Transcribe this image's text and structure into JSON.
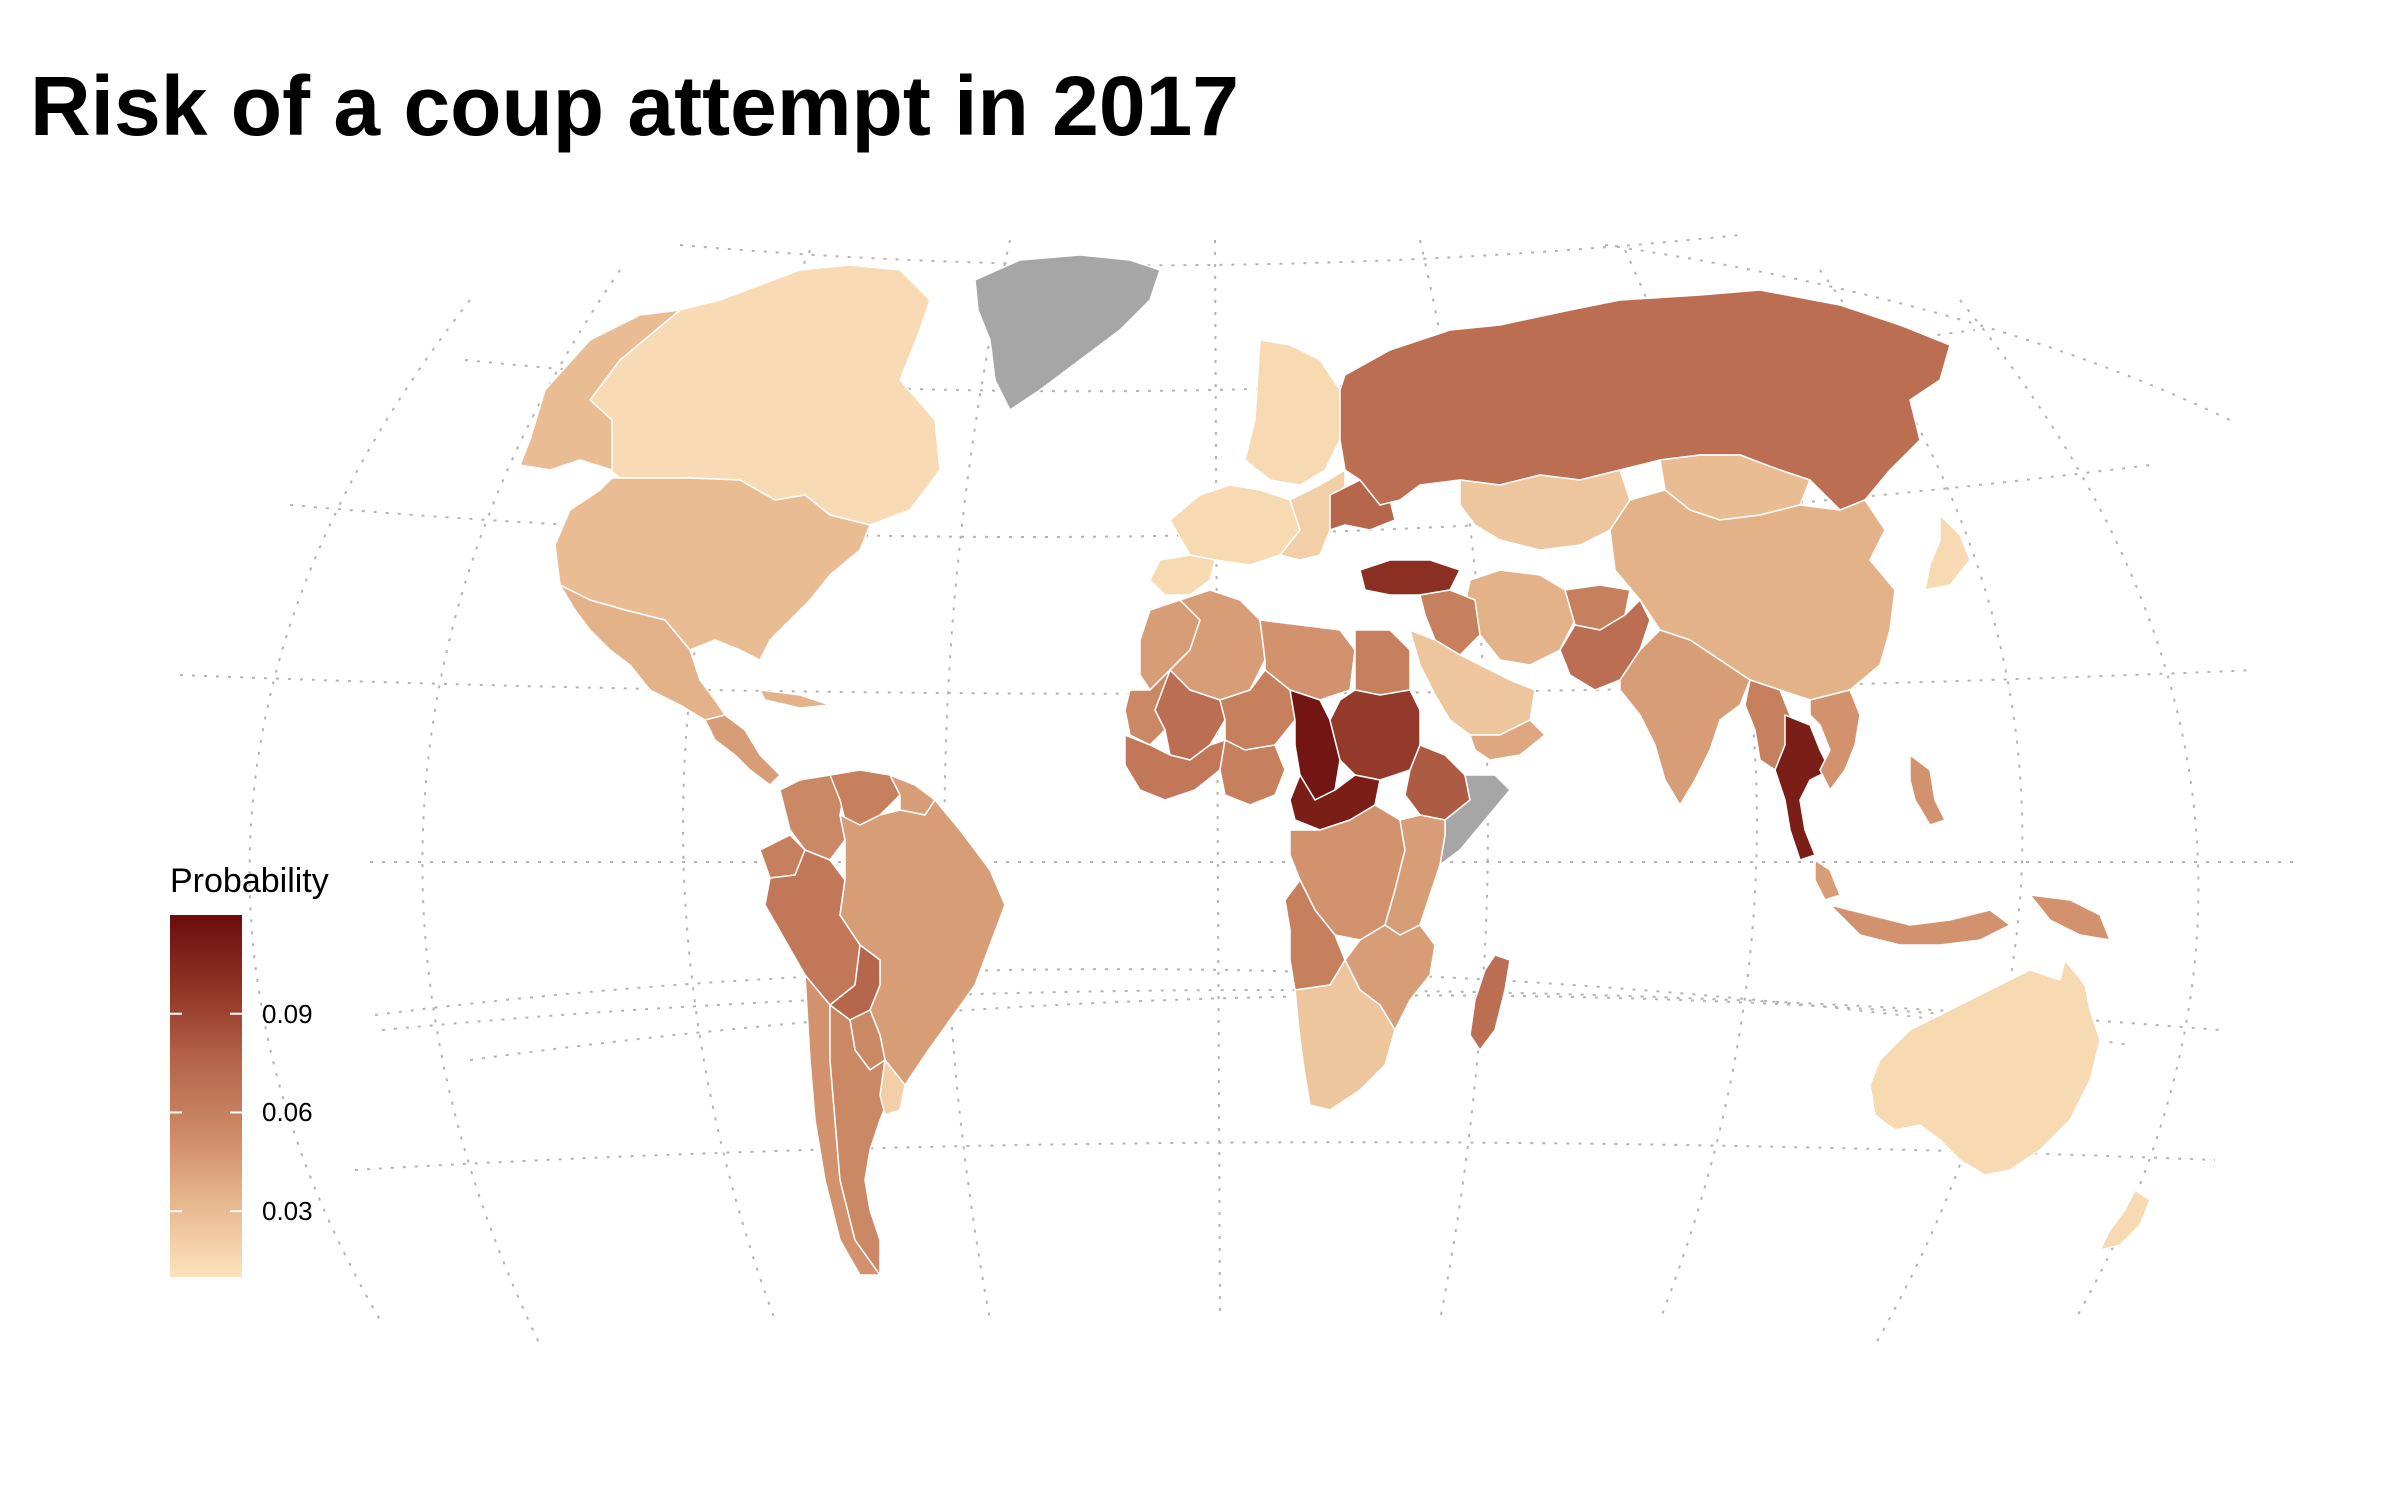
{
  "title": "Risk of a coup attempt in 2017",
  "legend": {
    "title": "Probability",
    "ticks": [
      "0.09",
      "0.06",
      "0.03"
    ],
    "tick_values": [
      0.09,
      0.06,
      0.03
    ],
    "range": [
      0.01,
      0.12
    ],
    "colors": [
      "#fce3bc",
      "#e8b88f",
      "#cc8a66",
      "#b5644a",
      "#8f3325",
      "#6b0c0c"
    ]
  },
  "no_data_color": "#a6a6a6",
  "chart_data": {
    "type": "choropleth",
    "value_label": "Probability",
    "regions": [
      {
        "name": "Canada",
        "value": 0.014
      },
      {
        "name": "Alaska (USA)",
        "value": 0.03
      },
      {
        "name": "USA",
        "value": 0.03
      },
      {
        "name": "Mexico",
        "value": 0.035
      },
      {
        "name": "Central America",
        "value": 0.045
      },
      {
        "name": "Cuba",
        "value": 0.035
      },
      {
        "name": "Greenland",
        "value": null
      },
      {
        "name": "Colombia",
        "value": 0.055
      },
      {
        "name": "Venezuela",
        "value": 0.06
      },
      {
        "name": "Guianas",
        "value": 0.045
      },
      {
        "name": "Ecuador",
        "value": 0.06
      },
      {
        "name": "Peru",
        "value": 0.065
      },
      {
        "name": "Brazil",
        "value": 0.045
      },
      {
        "name": "Bolivia",
        "value": 0.075
      },
      {
        "name": "Paraguay",
        "value": 0.055
      },
      {
        "name": "Chile",
        "value": 0.05
      },
      {
        "name": "Argentina",
        "value": 0.055
      },
      {
        "name": "Uruguay",
        "value": 0.02
      },
      {
        "name": "Scandinavia",
        "value": 0.015
      },
      {
        "name": "Western Europe",
        "value": 0.015
      },
      {
        "name": "Spain",
        "value": 0.015
      },
      {
        "name": "Eastern Europe",
        "value": 0.02
      },
      {
        "name": "Ukraine",
        "value": 0.075
      },
      {
        "name": "Turkey",
        "value": 0.1
      },
      {
        "name": "Russia",
        "value": 0.07
      },
      {
        "name": "Kazakhstan",
        "value": 0.025
      },
      {
        "name": "Mongolia",
        "value": 0.03
      },
      {
        "name": "China",
        "value": 0.035
      },
      {
        "name": "Japan",
        "value": 0.015
      },
      {
        "name": "Iran",
        "value": 0.035
      },
      {
        "name": "Iraq & Syria",
        "value": 0.06
      },
      {
        "name": "Saudi Arabia",
        "value": 0.025
      },
      {
        "name": "Yemen",
        "value": 0.04
      },
      {
        "name": "Afghanistan",
        "value": 0.06
      },
      {
        "name": "Pakistan",
        "value": 0.07
      },
      {
        "name": "India",
        "value": 0.045
      },
      {
        "name": "Myanmar",
        "value": 0.06
      },
      {
        "name": "Thailand",
        "value": 0.11
      },
      {
        "name": "Indochina",
        "value": 0.05
      },
      {
        "name": "Malaysia",
        "value": 0.045
      },
      {
        "name": "Indonesia",
        "value": 0.05
      },
      {
        "name": "Philippines",
        "value": 0.05
      },
      {
        "name": "Papua New Guinea",
        "value": 0.05
      },
      {
        "name": "Australia",
        "value": 0.015
      },
      {
        "name": "New Zealand",
        "value": 0.015
      },
      {
        "name": "Morocco & Western Sahara",
        "value": 0.045
      },
      {
        "name": "Algeria",
        "value": 0.045
      },
      {
        "name": "Libya",
        "value": 0.05
      },
      {
        "name": "Egypt",
        "value": 0.06
      },
      {
        "name": "Mali",
        "value": 0.07
      },
      {
        "name": "Mauritania",
        "value": 0.055
      },
      {
        "name": "Niger",
        "value": 0.06
      },
      {
        "name": "Chad",
        "value": 0.115
      },
      {
        "name": "Sudan",
        "value": 0.095
      },
      {
        "name": "Ethiopia",
        "value": 0.08
      },
      {
        "name": "Somalia",
        "value": null
      },
      {
        "name": "West Africa",
        "value": 0.065
      },
      {
        "name": "Nigeria",
        "value": 0.06
      },
      {
        "name": "Central African Republic",
        "value": 0.11
      },
      {
        "name": "DR Congo",
        "value": 0.05
      },
      {
        "name": "East Africa",
        "value": 0.045
      },
      {
        "name": "Angola",
        "value": 0.06
      },
      {
        "name": "Zambia & Mozambique",
        "value": 0.045
      },
      {
        "name": "Southern Africa",
        "value": 0.025
      },
      {
        "name": "Madagascar",
        "value": 0.07
      }
    ]
  }
}
